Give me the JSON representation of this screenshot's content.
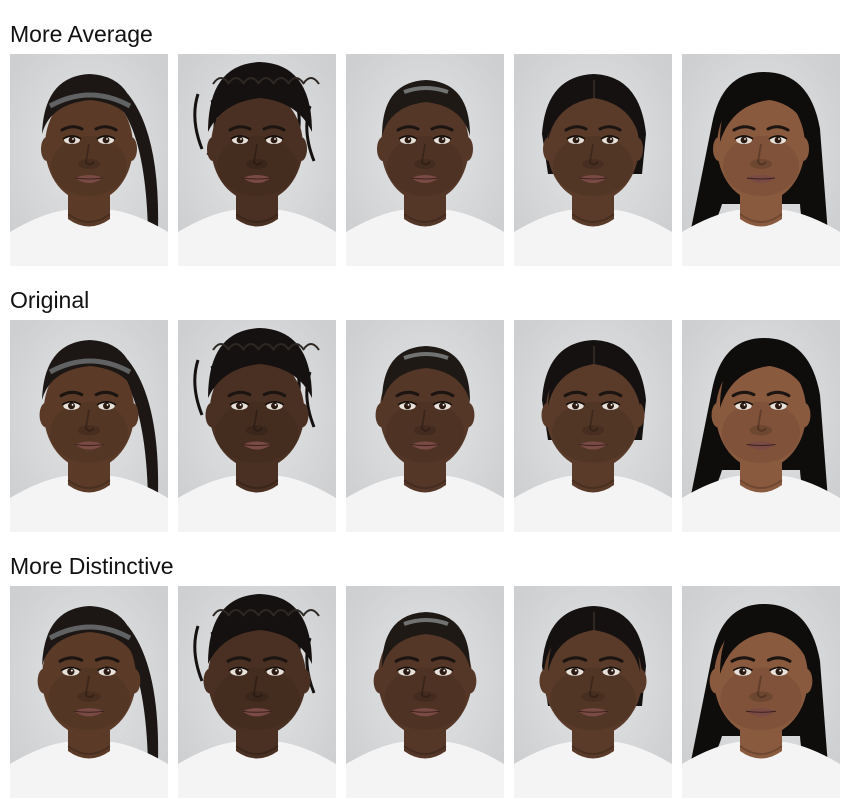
{
  "rows": [
    {
      "label": "More Average",
      "variant": "average"
    },
    {
      "label": "Original",
      "variant": "original"
    },
    {
      "label": "More Distinctive",
      "variant": "distinctive"
    }
  ],
  "faces": [
    {
      "name": "face-1",
      "skin": "#5b3b28",
      "hair": "#1c1714",
      "hairstyle": "slicked-ponytail"
    },
    {
      "name": "face-2",
      "skin": "#4a3022",
      "hair": "#151110",
      "hairstyle": "braided-updo"
    },
    {
      "name": "face-3",
      "skin": "#553728",
      "hair": "#1e1915",
      "hairstyle": "slicked-back"
    },
    {
      "name": "face-4",
      "skin": "#5a3b29",
      "hair": "#141110",
      "hairstyle": "center-part"
    },
    {
      "name": "face-5",
      "skin": "#8a5a3e",
      "hair": "#0f0d0c",
      "hairstyle": "shoulder-length"
    }
  ],
  "colors": {
    "background": "#d9dadb",
    "shirt": "#f4f4f4",
    "lips": "#7a4a45"
  }
}
